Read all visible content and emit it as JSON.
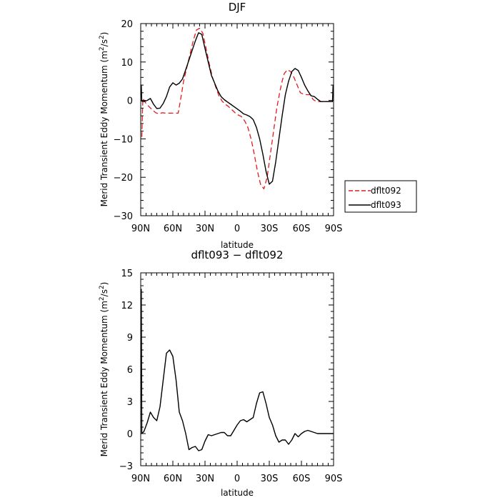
{
  "chart_data": [
    {
      "type": "line",
      "title": "DJF",
      "xlabel": "latitude",
      "ylabel": "Merid Transient Eddy Momentum",
      "ylabel_units_base": "m",
      "ylabel_units_mid": "/s",
      "ylabel_units_sup": "2",
      "xlim": [
        -90,
        90
      ],
      "ylim": [
        -30,
        20
      ],
      "x_ticks": [
        -90,
        -60,
        -30,
        0,
        30,
        60,
        90
      ],
      "x_tick_labels": [
        "90N",
        "60N",
        "30N",
        "0",
        "30S",
        "60S",
        "90S"
      ],
      "y_ticks": [
        -30,
        -20,
        -10,
        0,
        10,
        20
      ],
      "y_tick_labels": [
        "−30",
        "−20",
        "−10",
        "0",
        "10",
        "20"
      ],
      "legend_position": "right",
      "series": [
        {
          "name": "dflt092",
          "color": "#e41a1c",
          "dash": "dashed",
          "x": [
            -89,
            -88,
            -85,
            -82,
            -79,
            -76,
            -73,
            -70,
            -67,
            -64,
            -61,
            -58,
            -55,
            -52,
            -50,
            -47,
            -44,
            -41,
            -38,
            -35,
            -32,
            -29,
            -26,
            -23,
            -20,
            -17,
            -14,
            -11,
            -8,
            -5,
            -2,
            1,
            4,
            7,
            10,
            13,
            16,
            19,
            22,
            25,
            28,
            31,
            34,
            37,
            40,
            42,
            44,
            47,
            50,
            53,
            56,
            59,
            62,
            65,
            68,
            71,
            74,
            77,
            80,
            83,
            86,
            88,
            89
          ],
          "y": [
            -9.5,
            0.5,
            -0.8,
            -1.7,
            -2.5,
            -3.2,
            -3.5,
            -3.2,
            -3.3,
            -3.3,
            -3.3,
            -3.3,
            -3.3,
            1.5,
            5.0,
            8.5,
            12.0,
            15.5,
            18.3,
            18.8,
            17.5,
            13.5,
            9.5,
            6.0,
            3.5,
            1.2,
            -0.2,
            -1.0,
            -1.6,
            -2.4,
            -3.2,
            -3.8,
            -4.2,
            -5.3,
            -7.0,
            -10.0,
            -14.0,
            -18.5,
            -22.0,
            -23.0,
            -20.0,
            -14.0,
            -8.0,
            -2.0,
            2.5,
            5.0,
            7.0,
            8.0,
            7.5,
            6.0,
            4.0,
            2.0,
            1.6,
            1.5,
            1.5,
            0.2,
            -0.3,
            -0.3,
            -0.3,
            -0.3,
            -0.3,
            -0.3,
            -0.3
          ]
        },
        {
          "name": "dflt093",
          "color": "#000000",
          "dash": "solid",
          "x": [
            -89.5,
            -89,
            -87,
            -84,
            -81,
            -78,
            -75,
            -72,
            -69,
            -66,
            -63,
            -60,
            -57,
            -54,
            -51,
            -48,
            -45,
            -42,
            -39,
            -36,
            -33,
            -30,
            -27,
            -24,
            -21,
            -18,
            -15,
            -12,
            -9,
            -6,
            -3,
            0,
            3,
            6,
            9,
            12,
            15,
            18,
            21,
            24,
            27,
            30,
            33,
            36,
            39,
            42,
            45,
            48,
            51,
            54,
            57,
            60,
            63,
            66,
            69,
            72,
            75,
            78,
            81,
            84,
            87,
            89,
            89.5
          ],
          "y": [
            4.0,
            -0.2,
            -0.3,
            0.0,
            0.5,
            -1.0,
            -2.1,
            -2.0,
            -0.8,
            1.0,
            3.5,
            4.6,
            4.0,
            4.5,
            5.6,
            8.0,
            10.5,
            13.0,
            15.5,
            17.6,
            17.2,
            13.5,
            10.0,
            6.5,
            4.5,
            2.5,
            1.0,
            0.2,
            -0.4,
            -1.0,
            -1.6,
            -2.2,
            -2.8,
            -3.5,
            -3.8,
            -4.2,
            -5.0,
            -7.0,
            -10.0,
            -14.0,
            -18.5,
            -21.8,
            -21.0,
            -16.0,
            -10.0,
            -4.0,
            1.5,
            5.0,
            7.5,
            8.3,
            7.8,
            6.0,
            4.0,
            2.5,
            1.2,
            1.0,
            0.3,
            -0.3,
            -0.3,
            -0.3,
            -0.3,
            -0.3,
            4.0
          ]
        }
      ]
    },
    {
      "type": "line",
      "title": "dflt093 − dflt092",
      "xlabel": "latitude",
      "ylabel": "Merid Transient Eddy Momentum",
      "ylabel_units_base": "m",
      "ylabel_units_mid": "/s",
      "ylabel_units_sup": "2",
      "xlim": [
        -90,
        90
      ],
      "ylim": [
        -3,
        15
      ],
      "x_ticks": [
        -90,
        -60,
        -30,
        0,
        30,
        60,
        90
      ],
      "x_tick_labels": [
        "90N",
        "60N",
        "30N",
        "0",
        "30S",
        "60S",
        "90S"
      ],
      "y_ticks": [
        -3,
        0,
        3,
        6,
        9,
        12,
        15
      ],
      "y_tick_labels": [
        "−3",
        "0",
        "3",
        "6",
        "9",
        "12",
        "15"
      ],
      "series": [
        {
          "color": "#000000",
          "dash": "solid",
          "x": [
            -89.5,
            -89,
            -87,
            -84,
            -81,
            -78,
            -75,
            -72,
            -69,
            -66,
            -63,
            -60,
            -57,
            -54,
            -51,
            -48,
            -45,
            -42,
            -39,
            -36,
            -33,
            -30,
            -27,
            -24,
            -21,
            -18,
            -15,
            -12,
            -9,
            -6,
            -3,
            0,
            3,
            6,
            9,
            12,
            15,
            18,
            21,
            24,
            27,
            30,
            33,
            36,
            39,
            42,
            45,
            48,
            51,
            54,
            57,
            60,
            63,
            66,
            69,
            72,
            75,
            78,
            81,
            84,
            87,
            89,
            89.5
          ],
          "y": [
            13.5,
            0.0,
            0.2,
            1.0,
            2.0,
            1.5,
            1.2,
            2.5,
            5.0,
            7.5,
            7.8,
            7.2,
            5.0,
            2.0,
            1.2,
            0.0,
            -1.5,
            -1.3,
            -1.2,
            -1.6,
            -1.5,
            -0.7,
            -0.1,
            -0.2,
            -0.1,
            0.0,
            0.1,
            0.1,
            -0.2,
            -0.2,
            0.3,
            0.8,
            1.2,
            1.3,
            1.1,
            1.3,
            1.5,
            2.8,
            3.8,
            3.9,
            2.8,
            1.5,
            0.8,
            -0.2,
            -0.8,
            -0.6,
            -0.6,
            -1.0,
            -0.6,
            0.0,
            -0.3,
            0.0,
            0.2,
            0.3,
            0.2,
            0.1,
            0.0,
            0.0,
            0.0,
            0.0,
            0.0,
            0.0,
            0.0
          ]
        }
      ]
    }
  ]
}
